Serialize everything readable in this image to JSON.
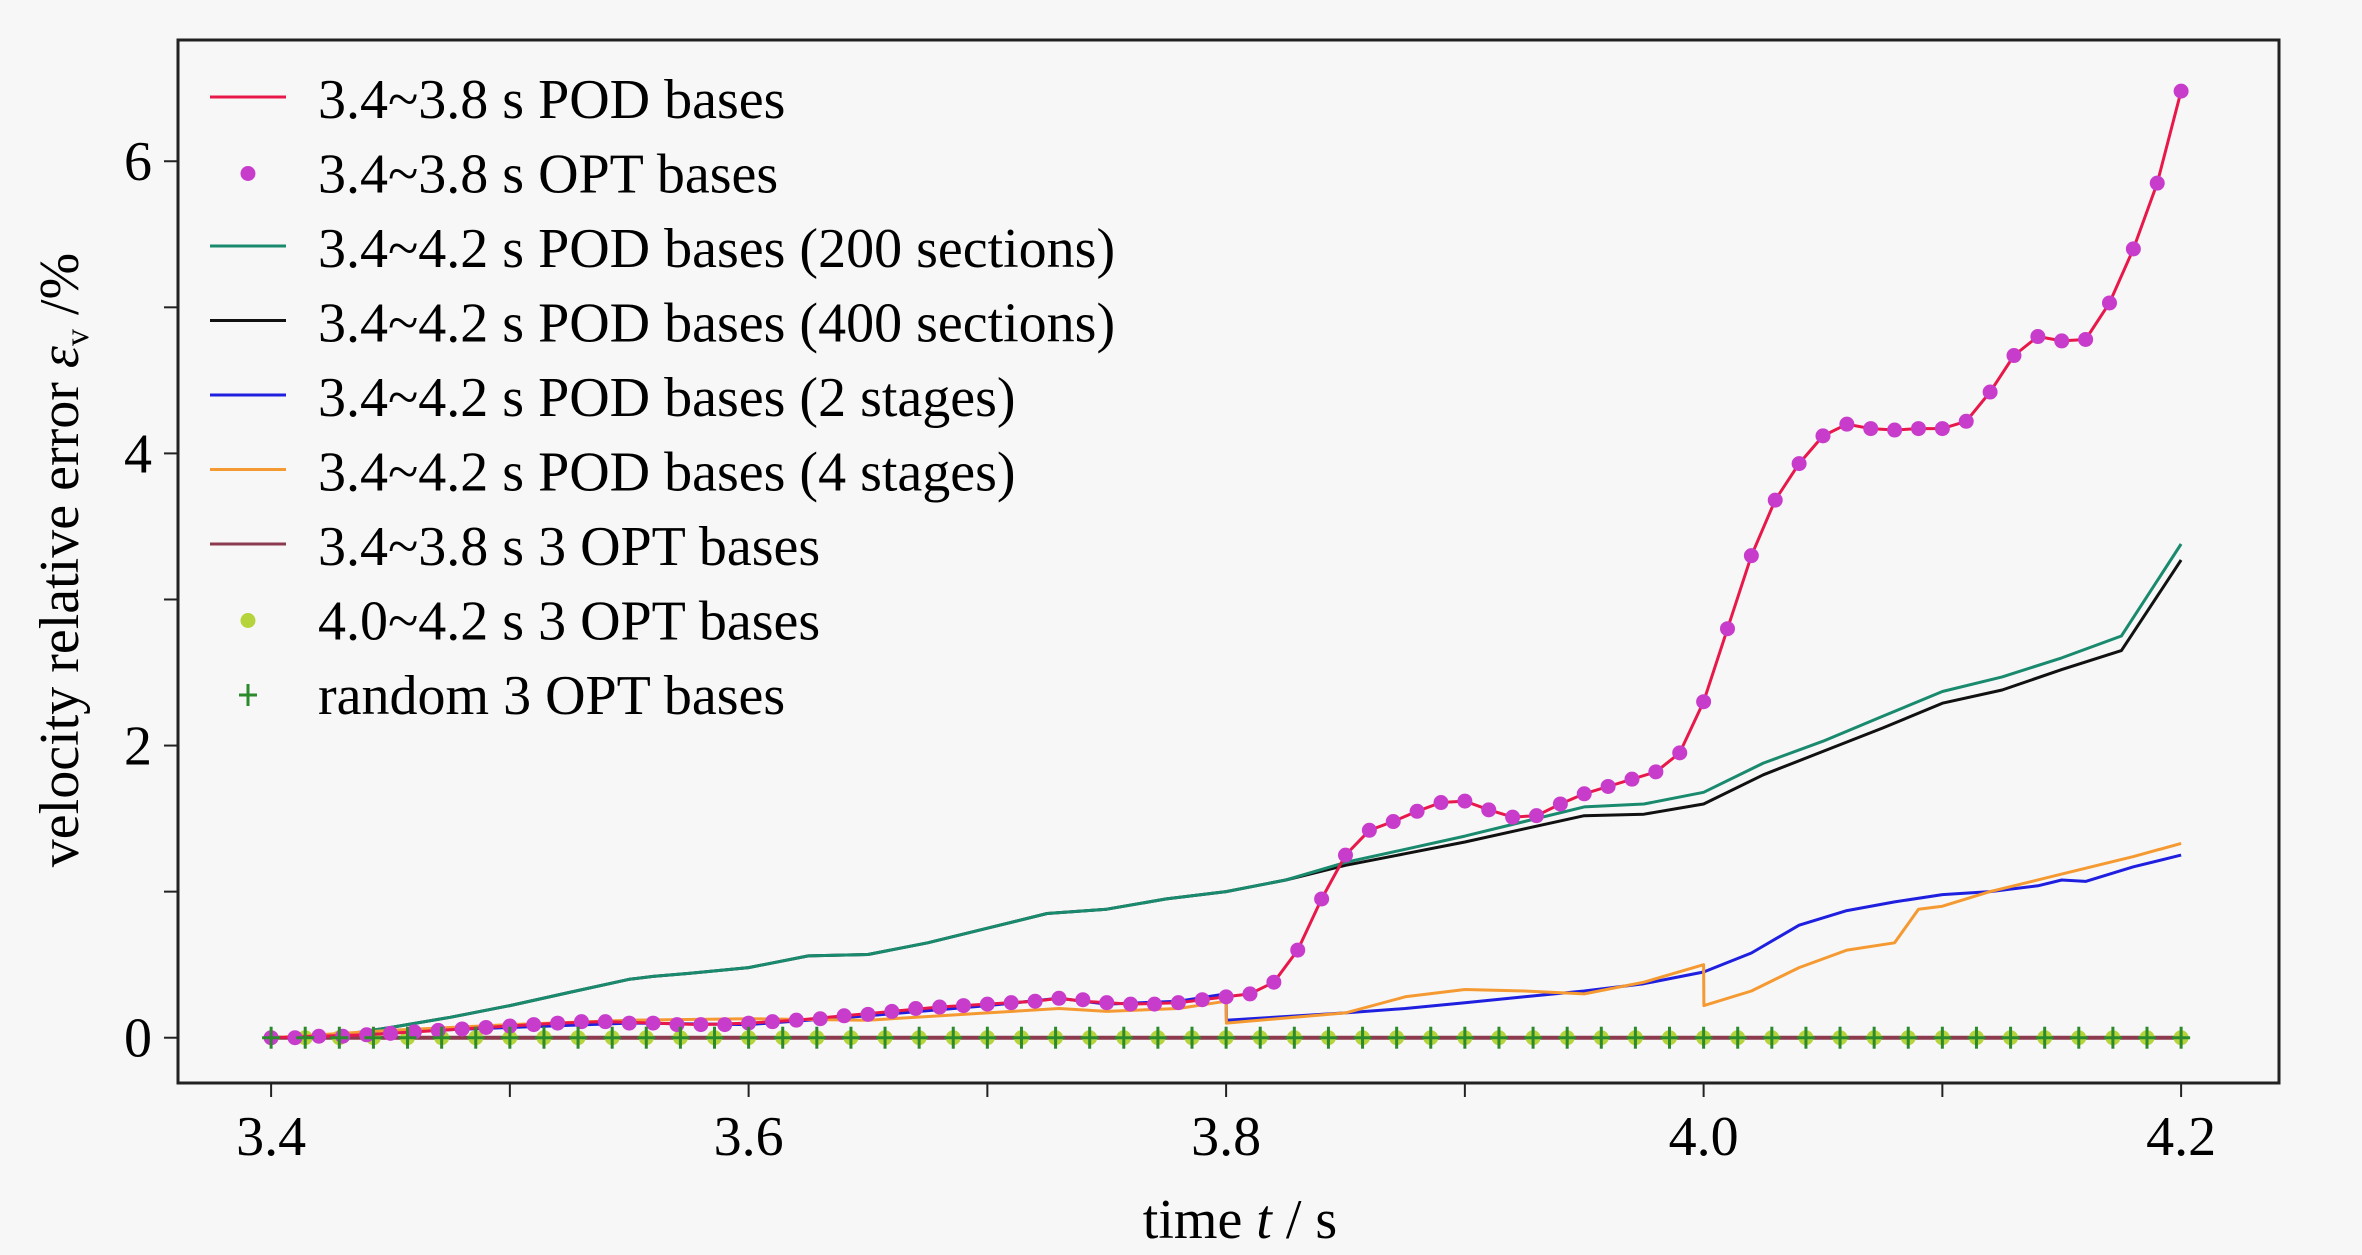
{
  "chart_data": {
    "type": "line",
    "title": "",
    "xlabel": "time t / s",
    "xlabel_parts": {
      "prefix": "time ",
      "var": "t",
      "suffix": " / s"
    },
    "ylabel": "velocity relative error ε_v /%",
    "ylabel_parts": {
      "prefix": "velocity relative error  ",
      "var": "ε",
      "sub": "v",
      "suffix": " /%"
    },
    "xlim": [
      3.361,
      4.241
    ],
    "ylim": [
      -0.31,
      6.83
    ],
    "xticks": [
      3.4,
      3.5,
      3.6,
      3.7,
      3.8,
      3.9,
      4.0,
      4.1,
      4.2
    ],
    "xtick_labels": [
      "3.4",
      "",
      "3.6",
      "",
      "3.8",
      "",
      "4.0",
      "",
      "4.2"
    ],
    "yticks": [
      0,
      1,
      2,
      3,
      4,
      5,
      6
    ],
    "ytick_labels": [
      "0",
      "",
      "2",
      "",
      "4",
      "",
      "6"
    ],
    "grid": false,
    "legend_position": "top-left",
    "series": [
      {
        "name": "3.4~3.8 s POD bases",
        "style": "line",
        "color": "#e8184a",
        "x": [
          3.4,
          3.42,
          3.44,
          3.46,
          3.48,
          3.5,
          3.52,
          3.54,
          3.56,
          3.58,
          3.6,
          3.62,
          3.64,
          3.66,
          3.68,
          3.7,
          3.72,
          3.73,
          3.74,
          3.76,
          3.78,
          3.8,
          3.81,
          3.82,
          3.83,
          3.84,
          3.85,
          3.86,
          3.87,
          3.88,
          3.89,
          3.9,
          3.91,
          3.92,
          3.93,
          3.94,
          3.95,
          3.96,
          3.97,
          3.98,
          3.99,
          4.0,
          4.01,
          4.02,
          4.03,
          4.04,
          4.05,
          4.06,
          4.07,
          4.08,
          4.09,
          4.1,
          4.11,
          4.12,
          4.13,
          4.14,
          4.15,
          4.16,
          4.17,
          4.18,
          4.19,
          4.2
        ],
        "y": [
          0.0,
          0.01,
          0.02,
          0.04,
          0.06,
          0.08,
          0.1,
          0.11,
          0.1,
          0.09,
          0.1,
          0.12,
          0.15,
          0.18,
          0.21,
          0.23,
          0.25,
          0.27,
          0.25,
          0.23,
          0.24,
          0.28,
          0.3,
          0.38,
          0.6,
          0.95,
          1.25,
          1.42,
          1.48,
          1.55,
          1.61,
          1.62,
          1.56,
          1.51,
          1.52,
          1.6,
          1.67,
          1.72,
          1.77,
          1.82,
          1.95,
          2.3,
          2.8,
          3.3,
          3.68,
          3.93,
          4.12,
          4.2,
          4.17,
          4.16,
          4.17,
          4.17,
          4.22,
          4.42,
          4.67,
          4.8,
          4.77,
          4.78,
          5.03,
          5.4,
          5.85,
          6.48
        ]
      },
      {
        "name": "3.4~3.8 s OPT bases",
        "style": "dots",
        "color": "#c83ccc",
        "x": [
          3.4,
          3.41,
          3.42,
          3.43,
          3.44,
          3.45,
          3.46,
          3.47,
          3.48,
          3.49,
          3.5,
          3.51,
          3.52,
          3.53,
          3.54,
          3.55,
          3.56,
          3.57,
          3.58,
          3.59,
          3.6,
          3.61,
          3.62,
          3.63,
          3.64,
          3.65,
          3.66,
          3.67,
          3.68,
          3.69,
          3.7,
          3.71,
          3.72,
          3.73,
          3.74,
          3.75,
          3.76,
          3.77,
          3.78,
          3.79,
          3.8,
          3.81,
          3.82,
          3.83,
          3.84,
          3.85,
          3.86,
          3.87,
          3.88,
          3.89,
          3.9,
          3.91,
          3.92,
          3.93,
          3.94,
          3.95,
          3.96,
          3.97,
          3.98,
          3.99,
          4.0,
          4.01,
          4.02,
          4.03,
          4.04,
          4.05,
          4.06,
          4.07,
          4.08,
          4.09,
          4.1,
          4.11,
          4.12,
          4.13,
          4.14,
          4.15,
          4.16,
          4.17,
          4.18,
          4.19,
          4.2
        ],
        "y": [
          0.0,
          0.0,
          0.01,
          0.01,
          0.02,
          0.03,
          0.04,
          0.05,
          0.06,
          0.07,
          0.08,
          0.09,
          0.1,
          0.11,
          0.11,
          0.1,
          0.1,
          0.09,
          0.09,
          0.09,
          0.1,
          0.11,
          0.12,
          0.13,
          0.15,
          0.16,
          0.18,
          0.2,
          0.21,
          0.22,
          0.23,
          0.24,
          0.25,
          0.27,
          0.26,
          0.24,
          0.23,
          0.23,
          0.24,
          0.26,
          0.28,
          0.3,
          0.38,
          0.6,
          0.95,
          1.25,
          1.42,
          1.48,
          1.55,
          1.61,
          1.62,
          1.56,
          1.51,
          1.52,
          1.6,
          1.67,
          1.72,
          1.77,
          1.82,
          1.95,
          2.3,
          2.8,
          3.3,
          3.68,
          3.93,
          4.12,
          4.2,
          4.17,
          4.16,
          4.17,
          4.17,
          4.22,
          4.42,
          4.67,
          4.8,
          4.77,
          4.78,
          5.03,
          5.4,
          5.85,
          6.48
        ]
      },
      {
        "name": "3.4~4.2 s POD bases (200 sections)",
        "style": "line",
        "color": "#1a8a6e",
        "x": [
          3.4,
          3.43,
          3.45,
          3.475,
          3.5,
          3.525,
          3.55,
          3.56,
          3.575,
          3.6,
          3.625,
          3.65,
          3.675,
          3.7,
          3.725,
          3.75,
          3.775,
          3.8,
          3.825,
          3.85,
          3.875,
          3.9,
          3.925,
          3.95,
          3.975,
          4.0,
          4.025,
          4.05,
          4.075,
          4.1,
          4.125,
          4.15,
          4.175,
          4.2
        ],
        "y": [
          0.0,
          0.02,
          0.07,
          0.14,
          0.22,
          0.31,
          0.4,
          0.42,
          0.44,
          0.48,
          0.56,
          0.57,
          0.65,
          0.75,
          0.85,
          0.88,
          0.95,
          1.0,
          1.08,
          1.2,
          1.29,
          1.38,
          1.48,
          1.58,
          1.6,
          1.68,
          1.88,
          2.03,
          2.2,
          2.37,
          2.47,
          2.6,
          2.75,
          3.38
        ]
      },
      {
        "name": "3.4~4.2 s POD bases (400 sections)",
        "style": "line",
        "color": "#111111",
        "x": [
          3.4,
          3.43,
          3.45,
          3.475,
          3.5,
          3.525,
          3.55,
          3.56,
          3.575,
          3.6,
          3.625,
          3.65,
          3.675,
          3.7,
          3.725,
          3.75,
          3.775,
          3.8,
          3.825,
          3.85,
          3.875,
          3.9,
          3.925,
          3.95,
          3.975,
          4.0,
          4.025,
          4.05,
          4.075,
          4.1,
          4.125,
          4.15,
          4.175,
          4.2
        ],
        "y": [
          0.0,
          0.02,
          0.07,
          0.14,
          0.22,
          0.31,
          0.4,
          0.42,
          0.44,
          0.48,
          0.56,
          0.57,
          0.65,
          0.75,
          0.85,
          0.88,
          0.95,
          1.0,
          1.08,
          1.18,
          1.26,
          1.34,
          1.43,
          1.52,
          1.53,
          1.6,
          1.8,
          1.96,
          2.12,
          2.29,
          2.38,
          2.52,
          2.65,
          3.27
        ]
      },
      {
        "name": "3.4~4.2 s POD bases (2 stages)",
        "style": "line",
        "color": "#1f1fe0",
        "x": [
          3.4,
          3.45,
          3.5,
          3.55,
          3.6,
          3.65,
          3.7,
          3.73,
          3.75,
          3.78,
          3.8,
          3.8001,
          3.85,
          3.875,
          3.9,
          3.925,
          3.95,
          3.975,
          4.0,
          4.02,
          4.04,
          4.06,
          4.08,
          4.1,
          4.12,
          4.14,
          4.15,
          4.16,
          4.18,
          4.2
        ],
        "y": [
          0.0,
          0.04,
          0.07,
          0.1,
          0.09,
          0.15,
          0.22,
          0.27,
          0.23,
          0.25,
          0.3,
          0.12,
          0.17,
          0.2,
          0.24,
          0.28,
          0.32,
          0.37,
          0.45,
          0.58,
          0.77,
          0.87,
          0.93,
          0.98,
          1.0,
          1.04,
          1.08,
          1.07,
          1.17,
          1.25
        ]
      },
      {
        "name": "3.4~4.2 s POD bases (4 stages)",
        "style": "line",
        "color": "#f59a32",
        "x": [
          3.4,
          3.45,
          3.5,
          3.55,
          3.6,
          3.65,
          3.7,
          3.73,
          3.75,
          3.78,
          3.8,
          3.8001,
          3.85,
          3.875,
          3.9,
          3.925,
          3.95,
          3.975,
          4.0,
          4.0001,
          4.02,
          4.04,
          4.06,
          4.08,
          4.09,
          4.1,
          4.12,
          4.15,
          4.18,
          4.2
        ],
        "y": [
          0.0,
          0.05,
          0.09,
          0.12,
          0.13,
          0.12,
          0.17,
          0.2,
          0.18,
          0.2,
          0.25,
          0.1,
          0.17,
          0.28,
          0.33,
          0.32,
          0.3,
          0.38,
          0.5,
          0.22,
          0.32,
          0.48,
          0.6,
          0.65,
          0.88,
          0.9,
          1.0,
          1.12,
          1.24,
          1.33
        ]
      },
      {
        "name": "3.4~3.8 s 3 OPT bases",
        "style": "line",
        "color": "#8c3b4e",
        "x": [
          3.4,
          4.2
        ],
        "y": [
          0.0,
          0.0
        ]
      },
      {
        "name": "4.0~4.2 s 3 OPT bases",
        "style": "dots",
        "color": "#b5d33a",
        "count": 57,
        "x_range": [
          3.4,
          4.2
        ],
        "y_const": 0.0
      },
      {
        "name": "random 3 OPT bases",
        "style": "plus",
        "color": "#2b8a2b",
        "count": 57,
        "x_range": [
          3.4,
          4.2
        ],
        "y_const": 0.0
      }
    ]
  }
}
